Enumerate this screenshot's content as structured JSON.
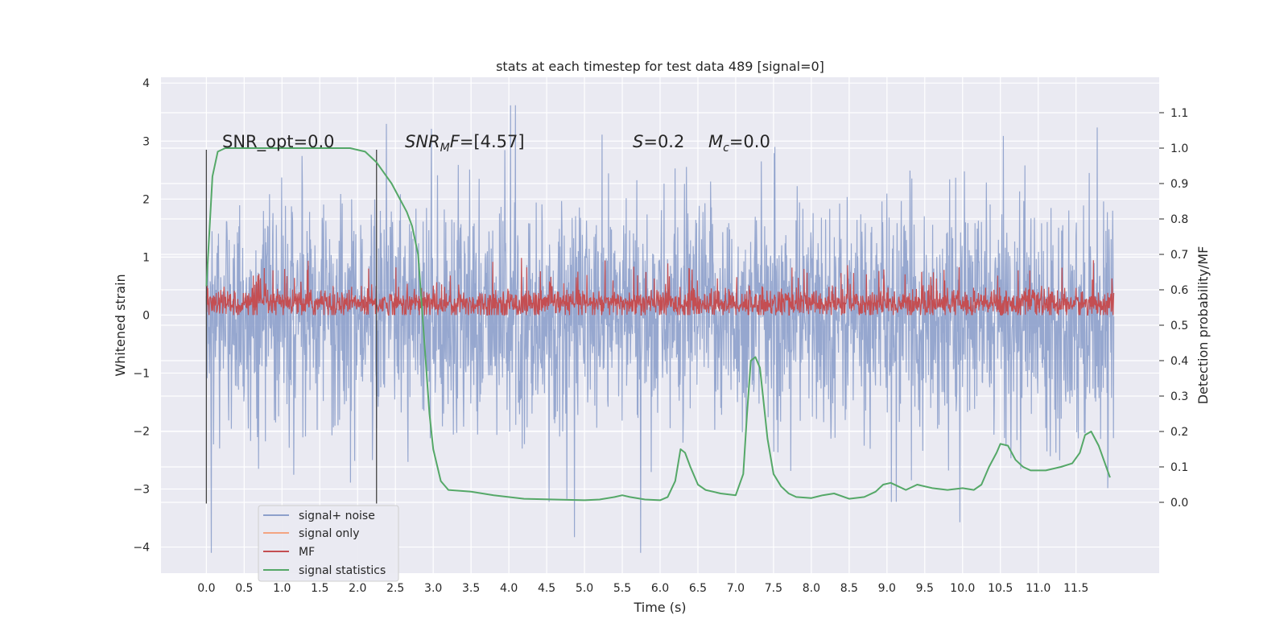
{
  "chart_data": {
    "type": "line",
    "title": "stats at each timestep for test data 489 [signal=0]",
    "xlabel": "Time (s)",
    "ylabel_left": "Whitened strain",
    "ylabel_right": "Detection probability/MF",
    "xlim": [
      -0.6,
      12.6
    ],
    "ylim_left": [
      -4.45,
      4.1
    ],
    "ylim_right": [
      -0.2,
      1.2
    ],
    "xticks": [
      "0.0",
      "0.5",
      "1.0",
      "1.5",
      "2.0",
      "2.5",
      "3.0",
      "3.5",
      "4.0",
      "4.5",
      "5.0",
      "5.5",
      "6.0",
      "6.5",
      "7.0",
      "7.5",
      "8.0",
      "8.5",
      "9.0",
      "9.5",
      "10.0",
      "10.5",
      "11.0",
      "11.5"
    ],
    "xtick_values": [
      0,
      0.5,
      1,
      1.5,
      2,
      2.5,
      3,
      3.5,
      4,
      4.5,
      5,
      5.5,
      6,
      6.5,
      7,
      7.5,
      8,
      8.5,
      9,
      9.5,
      10,
      10.5,
      11,
      11.5
    ],
    "yticks_left": [
      "4",
      "3",
      "2",
      "1",
      "0",
      "−1",
      "−2",
      "−3",
      "−4"
    ],
    "ytick_values_left": [
      4,
      3,
      2,
      1,
      0,
      -1,
      -2,
      -3,
      -4
    ],
    "yticks_right": [
      "1.1",
      "1.0",
      "0.9",
      "0.8",
      "0.7",
      "0.6",
      "0.5",
      "0.4",
      "0.3",
      "0.2",
      "0.1",
      "0.0"
    ],
    "ytick_values_right": [
      1.1,
      1.0,
      0.9,
      0.8,
      0.7,
      0.6,
      0.5,
      0.4,
      0.3,
      0.2,
      0.1,
      0.0
    ],
    "grid": true,
    "legend_position": "lower-left",
    "series": [
      {
        "name": "signal+ noise",
        "color": "#8da0cb",
        "axis": "left",
        "style": "dense-noise",
        "x_range": [
          0,
          12.0
        ],
        "typical_amplitude": 1.6,
        "max": 3.7,
        "min": -4.1
      },
      {
        "name": "signal only",
        "color": "#f4a582",
        "axis": "left",
        "values": []
      },
      {
        "name": "MF",
        "color": "#c44e52",
        "axis": "left",
        "style": "dense-noise",
        "x_range": [
          0,
          12.0
        ],
        "baseline": 0.0,
        "typical_top": 0.4,
        "max": 1.0
      },
      {
        "name": "signal statistics",
        "color": "#55a868",
        "axis": "right",
        "x": [
          0,
          0.08,
          0.15,
          0.25,
          0.4,
          1.0,
          1.5,
          1.9,
          2.1,
          2.25,
          2.35,
          2.45,
          2.55,
          2.65,
          2.72,
          2.8,
          2.85,
          2.9,
          2.95,
          3.0,
          3.1,
          3.2,
          3.5,
          3.8,
          4.2,
          4.6,
          5.0,
          5.2,
          5.4,
          5.5,
          5.6,
          5.8,
          6.0,
          6.1,
          6.2,
          6.27,
          6.33,
          6.4,
          6.5,
          6.6,
          6.8,
          7.0,
          7.1,
          7.15,
          7.2,
          7.26,
          7.32,
          7.36,
          7.42,
          7.5,
          7.6,
          7.7,
          7.8,
          8.0,
          8.15,
          8.3,
          8.5,
          8.7,
          8.85,
          8.95,
          9.05,
          9.15,
          9.25,
          9.4,
          9.6,
          9.8,
          10.0,
          10.15,
          10.25,
          10.35,
          10.45,
          10.5,
          10.6,
          10.7,
          10.8,
          10.9,
          11.1,
          11.3,
          11.45,
          11.55,
          11.62,
          11.7,
          11.8,
          11.9,
          11.95
        ],
        "y": [
          0.61,
          0.92,
          0.99,
          1.0,
          1.0,
          1.0,
          1.0,
          1.0,
          0.99,
          0.96,
          0.93,
          0.9,
          0.86,
          0.82,
          0.78,
          0.7,
          0.55,
          0.4,
          0.25,
          0.15,
          0.06,
          0.035,
          0.03,
          0.02,
          0.01,
          0.008,
          0.006,
          0.008,
          0.015,
          0.02,
          0.015,
          0.008,
          0.006,
          0.015,
          0.06,
          0.15,
          0.14,
          0.1,
          0.05,
          0.035,
          0.025,
          0.02,
          0.08,
          0.25,
          0.4,
          0.41,
          0.38,
          0.3,
          0.18,
          0.08,
          0.045,
          0.025,
          0.015,
          0.012,
          0.02,
          0.025,
          0.01,
          0.015,
          0.03,
          0.05,
          0.055,
          0.045,
          0.035,
          0.05,
          0.04,
          0.035,
          0.04,
          0.035,
          0.05,
          0.1,
          0.14,
          0.165,
          0.16,
          0.12,
          0.1,
          0.09,
          0.09,
          0.1,
          0.11,
          0.14,
          0.19,
          0.2,
          0.16,
          0.1,
          0.07
        ]
      }
    ],
    "vlines": [
      0,
      2.25
    ],
    "annotations": {
      "snr_opt": "SNR_opt=0.0",
      "snr_mf_prefix": "SNR",
      "snr_mf_sub": "M",
      "snr_mf_letter": "F",
      "snr_mf_value": "=[4.57]",
      "s_symbol": "S",
      "s_value": "=0.2",
      "mc_symbol": "M",
      "mc_sub": "c",
      "mc_value": "=0.0"
    }
  }
}
